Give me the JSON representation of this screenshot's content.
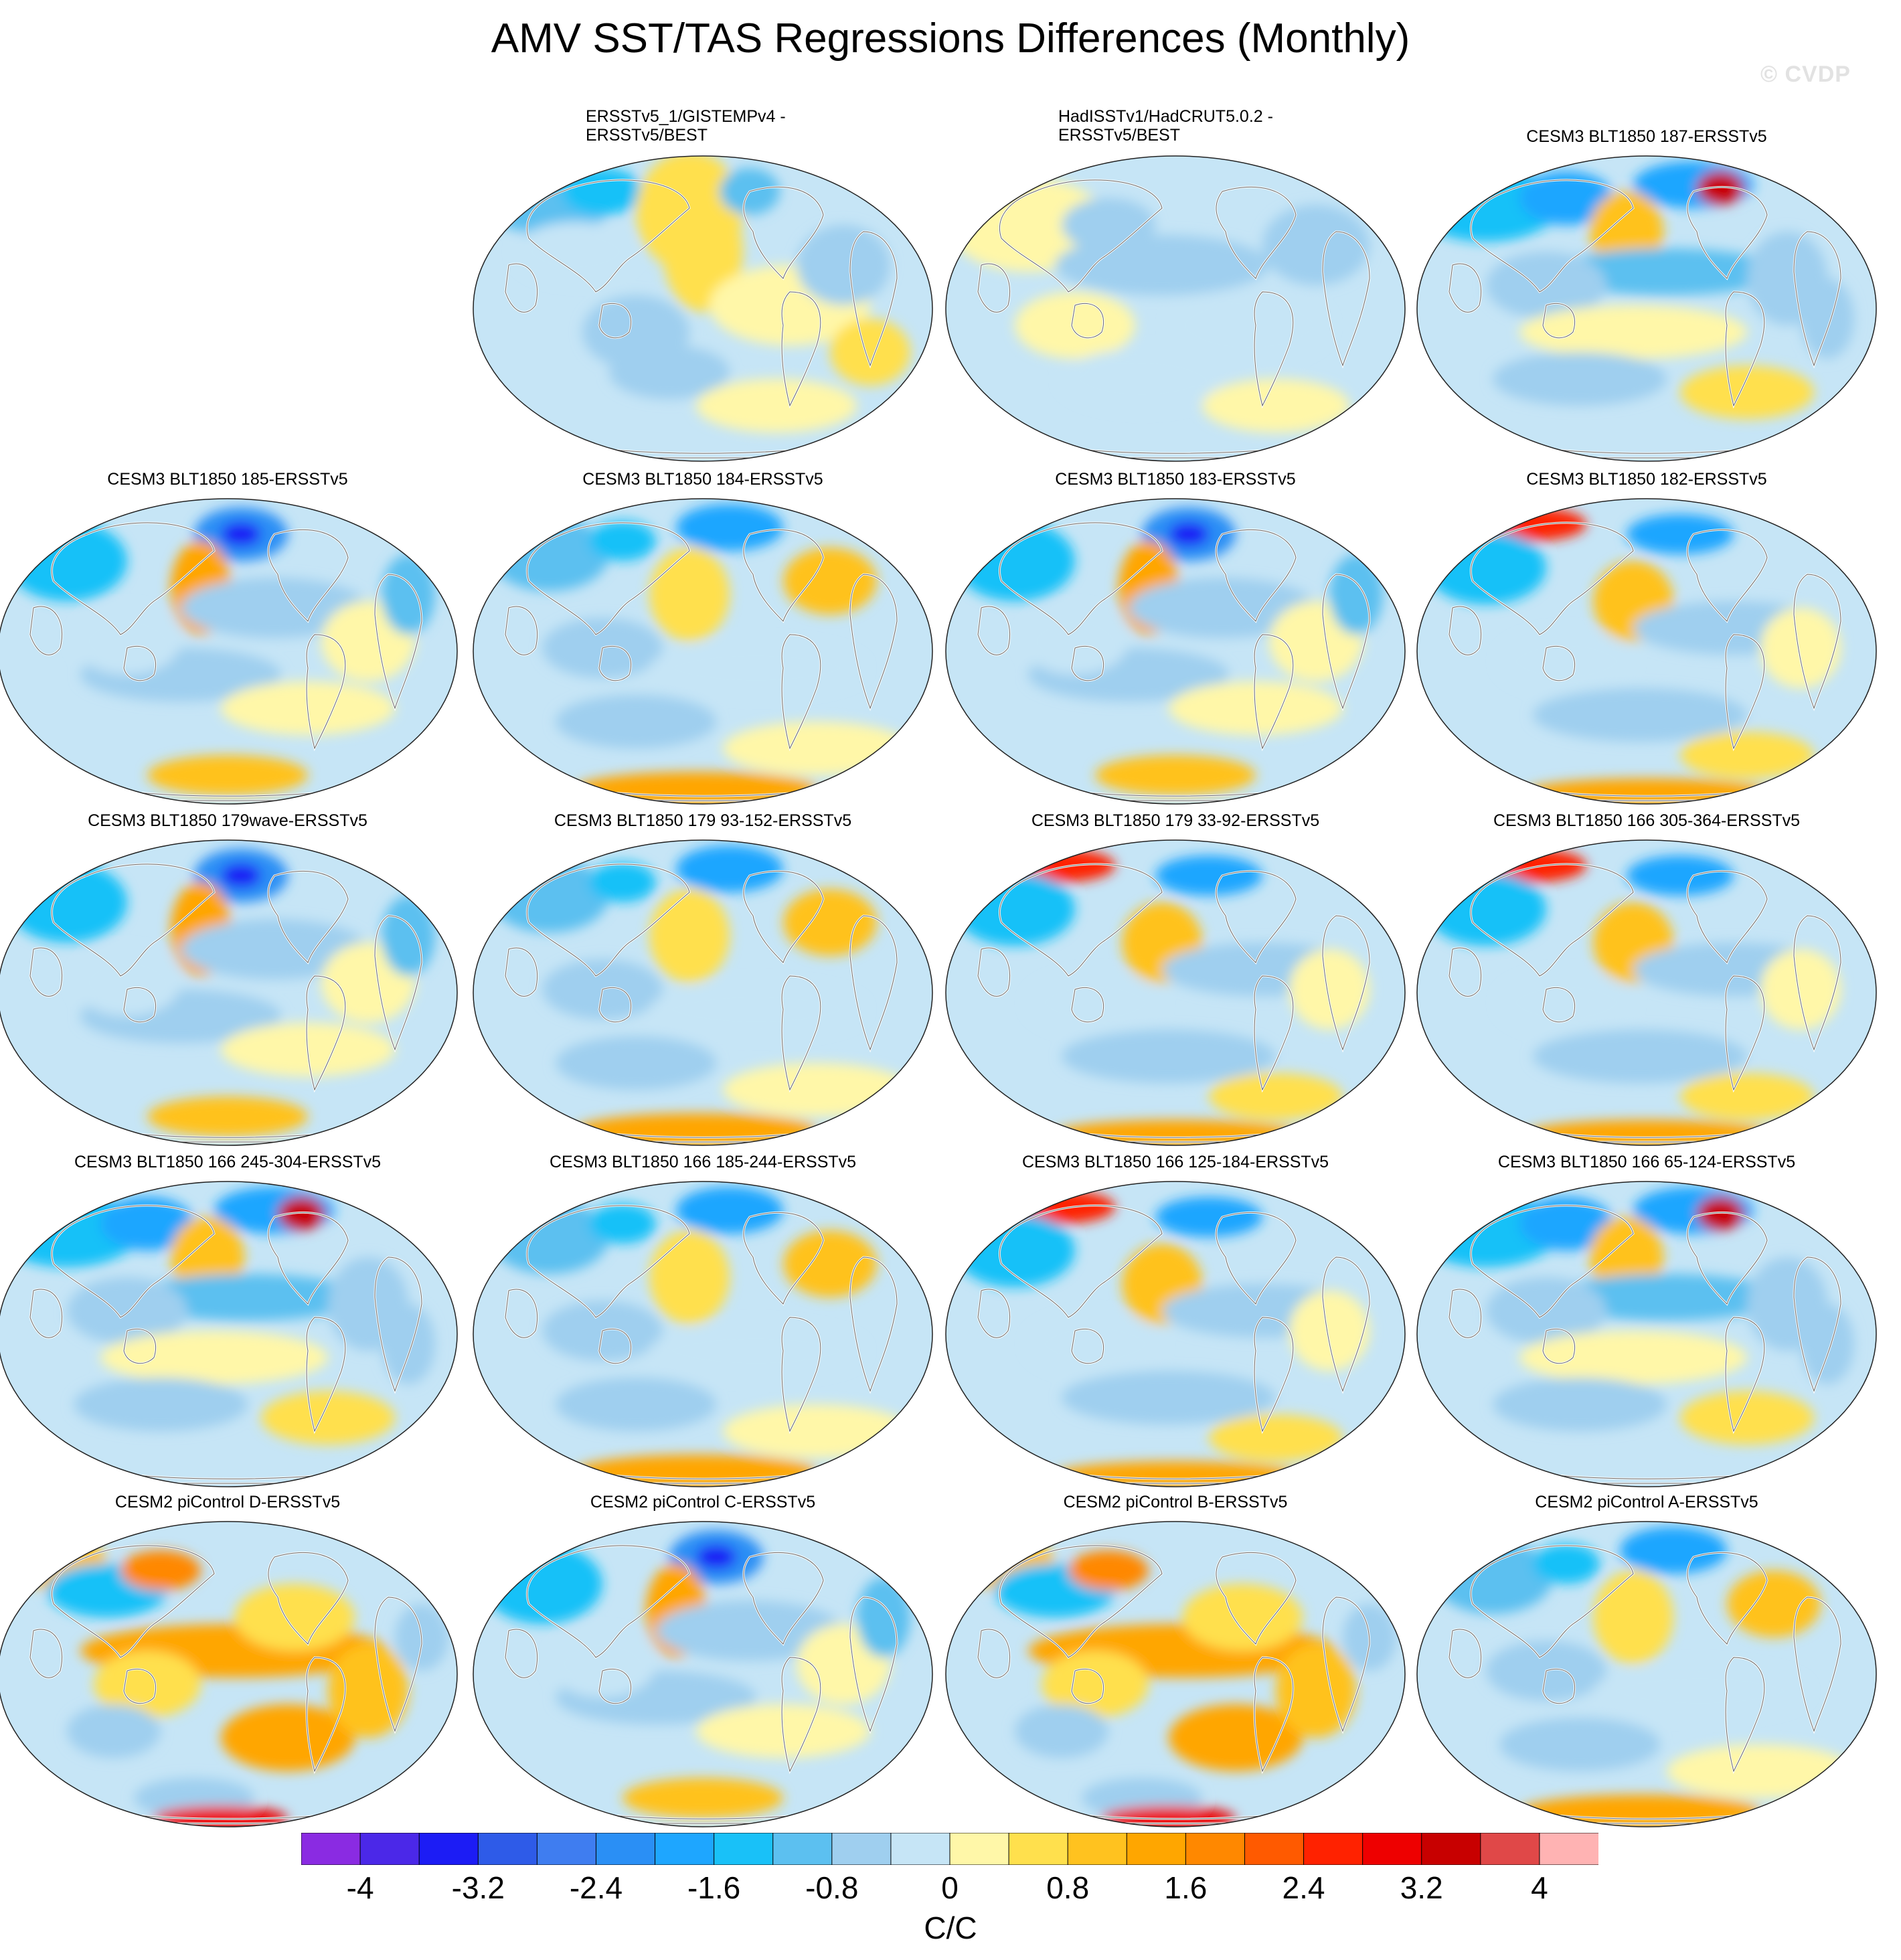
{
  "title": "AMV SST/TAS Regressions Differences (Monthly)",
  "watermark": "© CVDP",
  "panels": [
    {
      "label": "ERSSTv5_1/GISTEMPv4 -\nERSSTv5/BEST",
      "pattern": "obs1",
      "row": 0,
      "col": 1,
      "align": "left"
    },
    {
      "label": "HadISSTv1/HadCRUT5.0.2 -\nERSSTv5/BEST",
      "pattern": "obs2",
      "row": 0,
      "col": 2,
      "align": "left"
    },
    {
      "label": "CESM3 BLT1850 187-ERSSTv5",
      "pattern": "a",
      "row": 0,
      "col": 3
    },
    {
      "label": "CESM3 BLT1850 185-ERSSTv5",
      "pattern": "b",
      "row": 1,
      "col": 0
    },
    {
      "label": "CESM3 BLT1850 184-ERSSTv5",
      "pattern": "c",
      "row": 1,
      "col": 1
    },
    {
      "label": "CESM3 BLT1850 183-ERSSTv5",
      "pattern": "b",
      "row": 1,
      "col": 2
    },
    {
      "label": "CESM3 BLT1850 182-ERSSTv5",
      "pattern": "d",
      "row": 1,
      "col": 3
    },
    {
      "label": "CESM3 BLT1850 179wave-ERSSTv5",
      "pattern": "b",
      "row": 2,
      "col": 0
    },
    {
      "label": "CESM3 BLT1850 179 93-152-ERSSTv5",
      "pattern": "c",
      "row": 2,
      "col": 1
    },
    {
      "label": "CESM3 BLT1850 179 33-92-ERSSTv5",
      "pattern": "d",
      "row": 2,
      "col": 2
    },
    {
      "label": "CESM3 BLT1850 166 305-364-ERSSTv5",
      "pattern": "d",
      "row": 2,
      "col": 3
    },
    {
      "label": "CESM3 BLT1850 166 245-304-ERSSTv5",
      "pattern": "a",
      "row": 3,
      "col": 0
    },
    {
      "label": "CESM3 BLT1850 166 185-244-ERSSTv5",
      "pattern": "c",
      "row": 3,
      "col": 1
    },
    {
      "label": "CESM3 BLT1850 166 125-184-ERSSTv5",
      "pattern": "d",
      "row": 3,
      "col": 2
    },
    {
      "label": "CESM3 BLT1850 166 65-124-ERSSTv5",
      "pattern": "a",
      "row": 3,
      "col": 3
    },
    {
      "label": "CESM2 piControl D-ERSSTv5",
      "pattern": "e",
      "row": 4,
      "col": 0
    },
    {
      "label": "CESM2 piControl C-ERSSTv5",
      "pattern": "b",
      "row": 4,
      "col": 1
    },
    {
      "label": "CESM2 piControl B-ERSSTv5",
      "pattern": "e",
      "row": 4,
      "col": 2
    },
    {
      "label": "CESM2 piControl A-ERSSTv5",
      "pattern": "c",
      "row": 4,
      "col": 3
    }
  ],
  "colorbar": {
    "units": "C/C",
    "colors": [
      "#8a2be2",
      "#4b28e8",
      "#1c1cf5",
      "#2e5be8",
      "#3f7df0",
      "#2a8ff5",
      "#1ea6ff",
      "#19c1f8",
      "#5cc0f0",
      "#9fcfef",
      "#c6e5f6",
      "#fff7a8",
      "#ffe04d",
      "#ffc21f",
      "#ffa600",
      "#ff8800",
      "#ff5a00",
      "#ff2200",
      "#ee0000",
      "#c80000",
      "#e04848",
      "#ffb3b3"
    ],
    "tick_labels": [
      "-4",
      "-3.2",
      "-2.4",
      "-1.6",
      "-0.8",
      "0",
      "0.8",
      "1.6",
      "2.4",
      "3.2",
      "4"
    ],
    "tick_values": [
      -4,
      -3.2,
      -2.4,
      -1.6,
      -0.8,
      0,
      0.8,
      1.6,
      2.4,
      3.2,
      4
    ]
  }
}
